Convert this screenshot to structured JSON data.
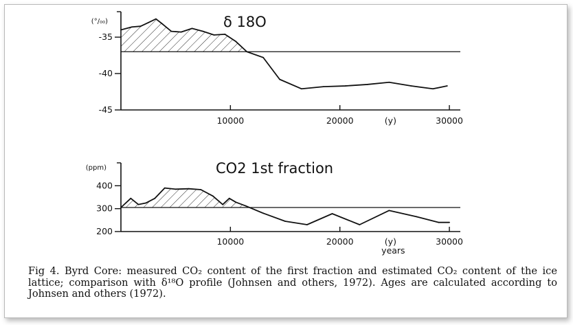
{
  "caption": "Fig 4. Byrd Core: measured CO₂ content of the first fraction and estimated CO₂ content of the ice lattice; comparison with δ¹⁸O profile (Johnsen and others, 1972). Ages are calculated according to Johnsen and others (1972).",
  "chart_data": [
    {
      "type": "line",
      "title": "δ 18O",
      "ylabel": "(°/₀₀)",
      "xlim": [
        0,
        31000
      ],
      "ylim": [
        -45,
        -31.5
      ],
      "yticks": [
        {
          "value": -35,
          "label": "-35"
        },
        {
          "value": -40,
          "label": "-40"
        },
        {
          "value": -45,
          "label": "-45"
        }
      ],
      "xticks": [
        {
          "value": 10000,
          "label": "10000"
        },
        {
          "value": 20000,
          "label": "20000"
        },
        {
          "value": 30000,
          "label": "30000"
        }
      ],
      "x_unit_label": "(y)",
      "reference_line": -37,
      "hatched": "area between curve and reference line where curve is above the line",
      "x": [
        0,
        1000,
        1800,
        2500,
        3200,
        3800,
        4600,
        5500,
        6500,
        7500,
        8500,
        9500,
        10500,
        11500,
        13000,
        14500,
        16500,
        18500,
        20500,
        22500,
        24500,
        26500,
        28500,
        29800
      ],
      "y": [
        -34.0,
        -33.6,
        -33.5,
        -33.0,
        -32.5,
        -33.2,
        -34.2,
        -34.3,
        -33.8,
        -34.2,
        -34.7,
        -34.6,
        -35.6,
        -37.0,
        -37.8,
        -40.8,
        -42.1,
        -41.8,
        -41.7,
        -41.5,
        -41.2,
        -41.7,
        -42.1,
        -41.7
      ]
    },
    {
      "type": "line",
      "title": "CO2 1st fraction",
      "ylabel": "(ppm)",
      "xlim": [
        0,
        31000
      ],
      "ylim": [
        200,
        500
      ],
      "yticks": [
        {
          "value": 200,
          "label": "200"
        },
        {
          "value": 300,
          "label": "300"
        },
        {
          "value": 400,
          "label": "400"
        }
      ],
      "xticks": [
        {
          "value": 10000,
          "label": "10000"
        },
        {
          "value": 20000,
          "label": "20000"
        },
        {
          "value": 30000,
          "label": "30000"
        }
      ],
      "x_unit_label": "(y)",
      "x_unit_sub": "years",
      "reference_line": 305,
      "hatched": "area between curve and reference line where curve is above the line",
      "x": [
        0,
        900,
        1600,
        2300,
        3100,
        4000,
        5000,
        6200,
        7300,
        8400,
        9300,
        9900,
        10500,
        11400,
        13000,
        15000,
        17000,
        19300,
        21800,
        24500,
        27000,
        29000,
        30000
      ],
      "y": [
        305,
        345,
        318,
        325,
        345,
        390,
        385,
        387,
        383,
        355,
        318,
        345,
        328,
        312,
        280,
        245,
        230,
        278,
        230,
        292,
        265,
        240,
        240
      ]
    }
  ]
}
